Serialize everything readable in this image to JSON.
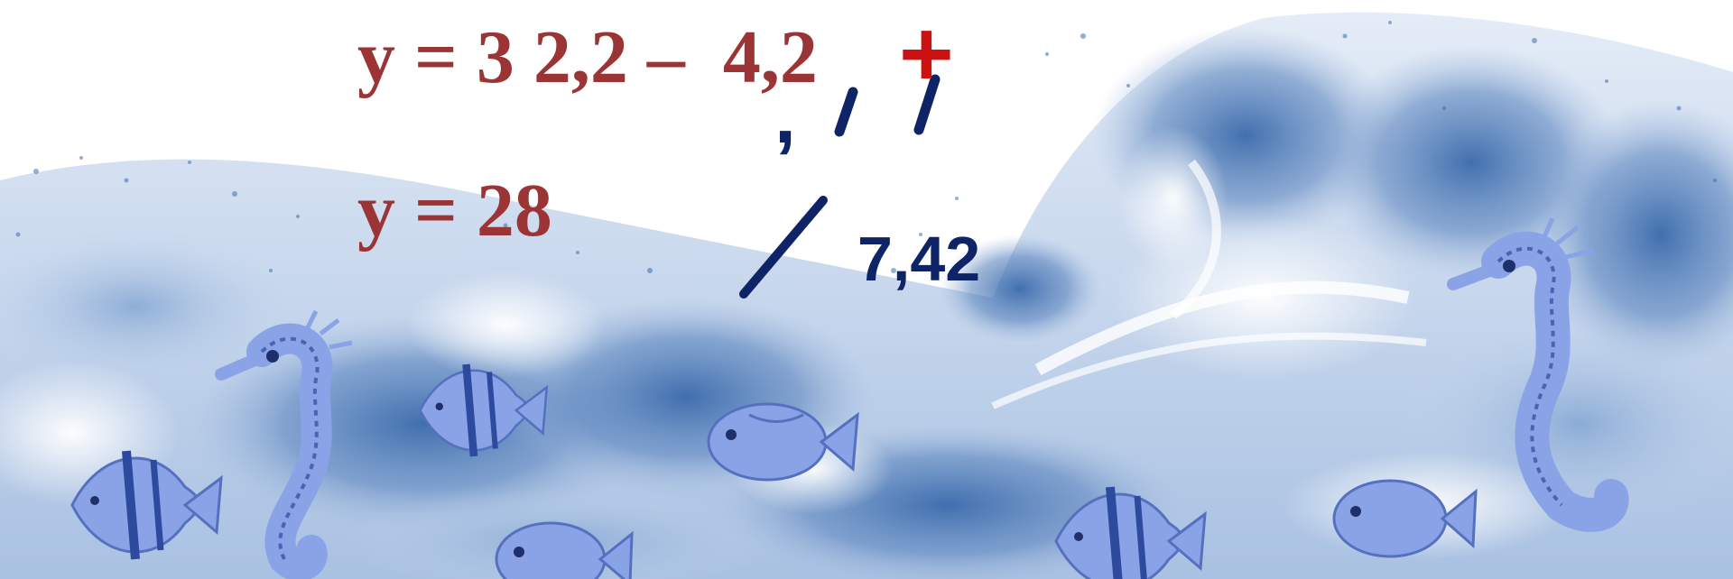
{
  "equations": {
    "line1": "y = 3 2,2 –  4,2",
    "line2": "y = 28"
  },
  "annotations": {
    "comma_mark": ",",
    "result": "7,42",
    "plus_sign": "+"
  },
  "colors": {
    "equation_text": "#9b3535",
    "annotation_text": "#0e2466",
    "plus_sign": "#cc1111",
    "wave_dark": "#3f6fae",
    "wave_mid": "#7fa3d1",
    "wave_light": "#d7e3f2",
    "fish": "#7f99e0"
  },
  "illustration": {
    "background": "sea-wave-splash",
    "creatures": [
      "angelfish-icon",
      "seahorse-icon",
      "angelfish-icon",
      "fish-icon",
      "fish-icon",
      "angelfish-icon",
      "fish-icon",
      "seahorse-icon"
    ]
  }
}
